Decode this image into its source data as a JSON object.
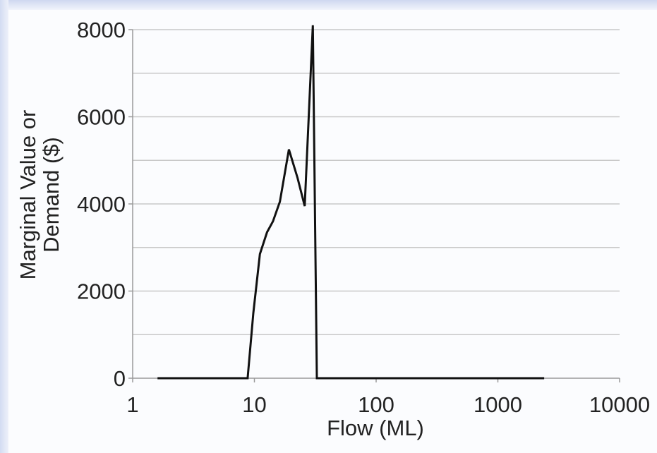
{
  "chart_data": {
    "type": "line",
    "title": "",
    "xlabel": "Flow (ML)",
    "ylabel_lines": [
      "Marginal Value or",
      "Demand ($)"
    ],
    "x_scale": "log",
    "xlim": [
      1,
      10000
    ],
    "ylim": [
      0,
      8000
    ],
    "x_ticks": [
      1,
      10,
      100,
      1000,
      10000
    ],
    "x_tick_labels": [
      "1",
      "10",
      "100",
      "1000",
      "10000"
    ],
    "y_ticks": [
      0,
      2000,
      4000,
      6000,
      8000
    ],
    "y_tick_labels": [
      "0",
      "2000",
      "4000",
      "6000",
      "8000"
    ],
    "grid": "horizontal, every 1000",
    "legend": "none",
    "colors": {
      "line": "#111111",
      "grid": "#c8c8c8",
      "axis": "#9a9a9a"
    },
    "series": [
      {
        "x": [
          1.6,
          8.8,
          9.8,
          11.1,
          12.7,
          14.2,
          16.2,
          19.2,
          22.6,
          25.9,
          30.2,
          32.6,
          2400
        ],
        "y": [
          0,
          0,
          1500,
          2850,
          3350,
          3600,
          4050,
          5250,
          4600,
          3950,
          8100,
          0,
          0
        ]
      }
    ]
  }
}
